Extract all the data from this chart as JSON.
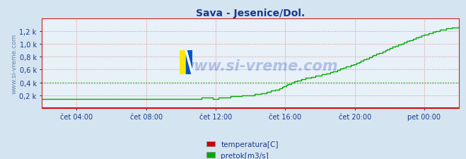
{
  "title": "Sava - Jesenice/Dol.",
  "title_color": "#1a3a8e",
  "title_fontsize": 10,
  "bg_color": "#d4e4f0",
  "plot_bg_color": "#e8f0f8",
  "ylabel_text": "www.si-vreme.com",
  "ylabel_color": "#6688aa",
  "ylabel_fontsize": 6.5,
  "watermark_text": "www.si-vreme.com",
  "watermark_color": "#3355bb",
  "watermark_fontsize": 15,
  "watermark_alpha": 0.3,
  "xlim": [
    0,
    288
  ],
  "ylim": [
    0,
    1.4
  ],
  "yticks": [
    0.2,
    0.4,
    0.6,
    0.8,
    1.0,
    1.2
  ],
  "ytick_labels": [
    "0,2 k",
    "0,4 k",
    "0,6 k",
    "0,8 k",
    "1,0 k",
    "1,2 k"
  ],
  "xtick_positions": [
    24,
    72,
    120,
    168,
    216,
    264
  ],
  "xtick_labels": [
    "čet 04:00",
    "čet 08:00",
    "čet 12:00",
    "čet 16:00",
    "čet 20:00",
    "pet 00:00"
  ],
  "grid_color": "#dd8888",
  "grid_linestyle": ":",
  "grid_linewidth": 0.7,
  "hline_value": 0.4,
  "hline_color": "#00bb00",
  "hline_linestyle": ":",
  "hline_linewidth": 1.0,
  "temp_color": "#cc0000",
  "flow_color": "#00aa00",
  "flow_linewidth": 1.0,
  "temp_linewidth": 0.8,
  "axis_color": "#cc2222",
  "tick_color": "#1a3a8e",
  "tick_fontsize": 7,
  "legend_temp_color": "#cc0000",
  "legend_flow_color": "#00aa00",
  "legend_fontsize": 7.5,
  "legend_temp_label": "temperatura[C]",
  "legend_flow_label": "pretok[m3/s]"
}
